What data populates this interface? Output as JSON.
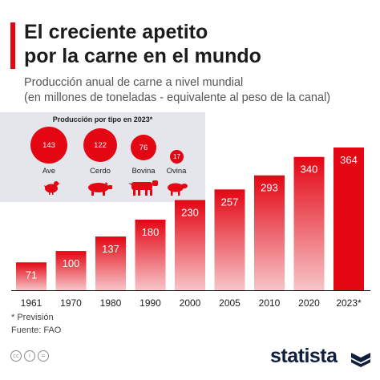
{
  "header": {
    "title_line1": "El creciente apetito",
    "title_line2": "por la carne en el mundo",
    "subtitle_line1": "Producción anual de carne a nivel mundial",
    "subtitle_line2": "(en millones de toneladas - equivalente al peso de la canal)"
  },
  "panel": {
    "title": "Producción por tipo en 2023*",
    "items": [
      {
        "label": "Ave",
        "value": "143",
        "icon": "chicken-icon"
      },
      {
        "label": "Cerdo",
        "value": "122",
        "icon": "pig-icon"
      },
      {
        "label": "Bovina",
        "value": "76",
        "icon": "cow-icon"
      },
      {
        "label": "Ovina",
        "value": "17",
        "icon": "sheep-icon"
      }
    ]
  },
  "chart_data": {
    "type": "bar",
    "categories": [
      "1961",
      "1970",
      "1980",
      "1990",
      "2000",
      "2005",
      "2010",
      "2020",
      "2023*"
    ],
    "values": [
      71,
      100,
      137,
      180,
      230,
      257,
      293,
      340,
      364
    ],
    "title": "",
    "xlabel": "",
    "ylabel": "",
    "ylim": [
      0,
      364
    ],
    "grid": false,
    "bar_color": "#e30613",
    "highlight_last": true
  },
  "footer": {
    "note": "* Previsión",
    "source": "Fuente: FAO",
    "license_icons": [
      "cc",
      "i",
      "="
    ],
    "brand": "statista"
  },
  "colors": {
    "accent": "#e30613",
    "panel_bg": "#e4e6eb",
    "brand": "#0f1e3c"
  }
}
